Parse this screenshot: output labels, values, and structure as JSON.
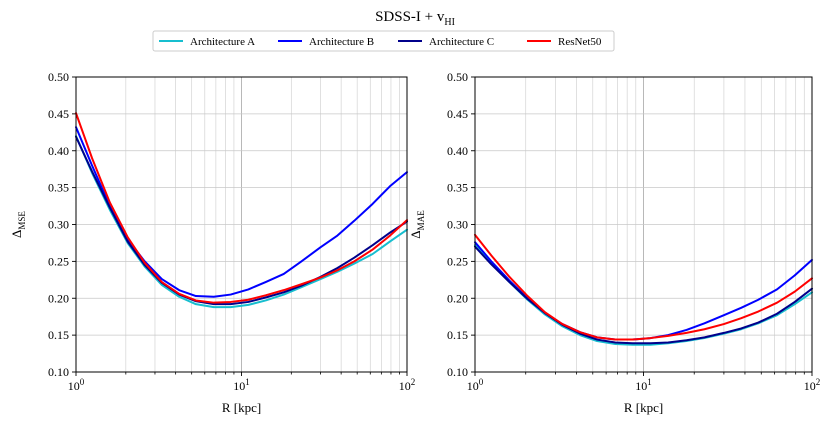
{
  "figure": {
    "suptitle": "SDSS-I + v",
    "suptitle_sub": "HI"
  },
  "legend": {
    "placement": "top-center",
    "entries": [
      {
        "label": "Architecture A",
        "color": "#17becf"
      },
      {
        "label": "Architecture B",
        "color": "#0000ff"
      },
      {
        "label": "Architecture C",
        "color": "#00008b"
      },
      {
        "label": "ResNet50",
        "color": "#ff0000"
      }
    ]
  },
  "chart_data": [
    {
      "type": "line",
      "xscale": "log",
      "xlabel": "R [kpc]",
      "ylabel_main": "Δ",
      "ylabel_sub": "MSE",
      "xlim": [
        1,
        100
      ],
      "ylim": [
        0.1,
        0.5
      ],
      "xticks": [
        1,
        10,
        100
      ],
      "xtick_labels": [
        [
          "10",
          "0"
        ],
        [
          "10",
          "1"
        ],
        [
          "10",
          "2"
        ]
      ],
      "yticks": [
        "0.10",
        "0.15",
        "0.20",
        "0.25",
        "0.30",
        "0.35",
        "0.40",
        "0.45",
        "0.50"
      ],
      "grid": true,
      "x": [
        1,
        1.25,
        1.6,
        2.05,
        2.6,
        3.3,
        4.2,
        5.3,
        6.8,
        8.6,
        11,
        14,
        18,
        23,
        30,
        38,
        48,
        62,
        79,
        100
      ],
      "series": [
        {
          "name": "Architecture A",
          "color": "#17becf",
          "values": [
            0.42,
            0.37,
            0.32,
            0.275,
            0.243,
            0.218,
            0.202,
            0.192,
            0.188,
            0.188,
            0.191,
            0.197,
            0.205,
            0.215,
            0.226,
            0.236,
            0.247,
            0.26,
            0.277,
            0.293
          ]
        },
        {
          "name": "Architecture B",
          "color": "#0000ff",
          "values": [
            0.432,
            0.38,
            0.325,
            0.28,
            0.25,
            0.226,
            0.211,
            0.203,
            0.202,
            0.205,
            0.212,
            0.222,
            0.233,
            0.25,
            0.269,
            0.285,
            0.305,
            0.328,
            0.352,
            0.371
          ]
        },
        {
          "name": "Architecture C",
          "color": "#00008b",
          "values": [
            0.419,
            0.372,
            0.323,
            0.277,
            0.245,
            0.221,
            0.205,
            0.196,
            0.192,
            0.192,
            0.195,
            0.201,
            0.208,
            0.217,
            0.229,
            0.241,
            0.255,
            0.272,
            0.289,
            0.304
          ]
        },
        {
          "name": "ResNet50",
          "color": "#ff0000",
          "values": [
            0.451,
            0.39,
            0.33,
            0.283,
            0.248,
            0.222,
            0.206,
            0.197,
            0.194,
            0.195,
            0.198,
            0.204,
            0.211,
            0.219,
            0.228,
            0.238,
            0.25,
            0.266,
            0.285,
            0.306
          ]
        }
      ]
    },
    {
      "type": "line",
      "xscale": "log",
      "xlabel": "R [kpc]",
      "ylabel_main": "Δ",
      "ylabel_sub": "MAE",
      "xlim": [
        1,
        100
      ],
      "ylim": [
        0.1,
        0.5
      ],
      "xticks": [
        1,
        10,
        100
      ],
      "xtick_labels": [
        [
          "10",
          "0"
        ],
        [
          "10",
          "1"
        ],
        [
          "10",
          "2"
        ]
      ],
      "yticks": [
        "0.10",
        "0.15",
        "0.20",
        "0.25",
        "0.30",
        "0.35",
        "0.40",
        "0.45",
        "0.50"
      ],
      "grid": true,
      "x": [
        1,
        1.25,
        1.6,
        2.05,
        2.6,
        3.3,
        4.2,
        5.3,
        6.8,
        8.6,
        11,
        14,
        18,
        23,
        30,
        38,
        48,
        62,
        79,
        100
      ],
      "series": [
        {
          "name": "Architecture A",
          "color": "#17becf",
          "values": [
            0.272,
            0.247,
            0.222,
            0.198,
            0.178,
            0.162,
            0.15,
            0.142,
            0.138,
            0.137,
            0.137,
            0.139,
            0.142,
            0.146,
            0.152,
            0.158,
            0.166,
            0.177,
            0.192,
            0.208
          ]
        },
        {
          "name": "Architecture B",
          "color": "#0000ff",
          "values": [
            0.276,
            0.25,
            0.224,
            0.2,
            0.18,
            0.165,
            0.154,
            0.147,
            0.144,
            0.144,
            0.146,
            0.15,
            0.157,
            0.166,
            0.177,
            0.187,
            0.198,
            0.212,
            0.231,
            0.252
          ]
        },
        {
          "name": "Architecture C",
          "color": "#00008b",
          "values": [
            0.27,
            0.246,
            0.222,
            0.199,
            0.18,
            0.164,
            0.152,
            0.144,
            0.14,
            0.139,
            0.139,
            0.14,
            0.143,
            0.147,
            0.153,
            0.159,
            0.167,
            0.179,
            0.195,
            0.213
          ]
        },
        {
          "name": "ResNet50",
          "color": "#ff0000",
          "values": [
            0.286,
            0.258,
            0.229,
            0.203,
            0.181,
            0.165,
            0.154,
            0.147,
            0.144,
            0.144,
            0.146,
            0.149,
            0.153,
            0.158,
            0.165,
            0.173,
            0.182,
            0.194,
            0.209,
            0.227
          ]
        }
      ]
    }
  ]
}
